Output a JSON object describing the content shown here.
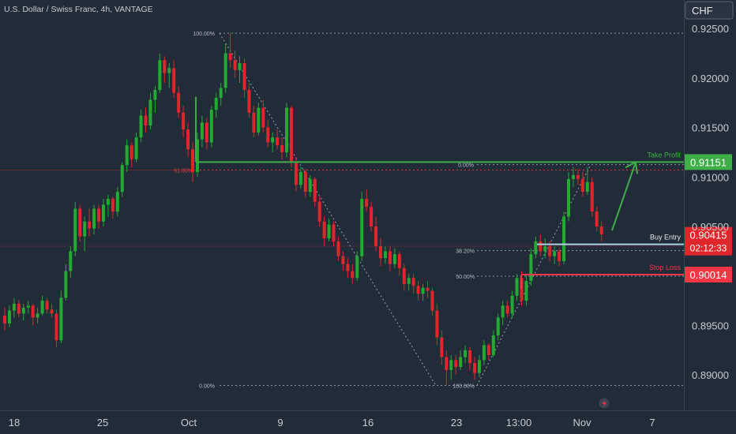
{
  "header": {
    "symbol_title": "U.S. Dollar / Swiss Franc, 4h, VANTAGE",
    "currency": "CHF"
  },
  "colors": {
    "background": "#222b38",
    "up": "#22ab30",
    "down": "#e0262b",
    "take_profit": "#3fae49",
    "stop_loss": "#f23645",
    "entry": "#b2cfe6",
    "text": "#c7cbd2"
  },
  "icons": {
    "logo": "lightning-bolt-icon"
  },
  "chart_data": {
    "type": "candlestick",
    "title": "U.S. Dollar / Swiss Franc, 4h, VANTAGE",
    "y_range": [
      0.88722,
      0.92709
    ],
    "y_ticks": [
      "0.92500",
      "0.92000",
      "0.91500",
      "0.91000",
      "0.90500",
      "0.89500",
      "0.89000"
    ],
    "x_ticks": [
      "18",
      "25",
      "Oct",
      "9",
      "16",
      "23",
      "13:00",
      "Nov",
      "7"
    ],
    "grid": false,
    "fib_levels": [
      {
        "label": "100.00%",
        "price": 0.92453
      },
      {
        "label": "61.80%",
        "price": 0.91069
      },
      {
        "label": "0.00%",
        "price": 0.91125
      },
      {
        "label": "38.20%",
        "price": 0.90256
      },
      {
        "label": "50.00%",
        "price": 0.89998
      },
      {
        "label": "0.00%",
        "price": 0.88893
      },
      {
        "label": "100.00%",
        "price": 0.88893
      }
    ],
    "levels": {
      "take_profit": {
        "label": "Take Profit",
        "price": "0.91151",
        "value": 0.91151
      },
      "buy_entry": {
        "label": "Buy Entry",
        "price": "0.90415",
        "value": 0.90415,
        "countdown": "02:12:33"
      },
      "stop_loss": {
        "label": "Stop Loss",
        "price": "0.90014",
        "value": 0.90014
      }
    },
    "candles": [
      [
        0.896,
        0.8968,
        0.8945,
        0.8952
      ],
      [
        0.8952,
        0.897,
        0.8948,
        0.8965
      ],
      [
        0.8965,
        0.8978,
        0.8958,
        0.8972
      ],
      [
        0.8972,
        0.8976,
        0.8958,
        0.8962
      ],
      [
        0.8962,
        0.8972,
        0.8955,
        0.8968
      ],
      [
        0.8968,
        0.8975,
        0.8962,
        0.897
      ],
      [
        0.897,
        0.8972,
        0.895,
        0.8958
      ],
      [
        0.8958,
        0.8968,
        0.8952,
        0.8962
      ],
      [
        0.8962,
        0.898,
        0.896,
        0.8975
      ],
      [
        0.8975,
        0.8978,
        0.8962,
        0.8966
      ],
      [
        0.8966,
        0.8972,
        0.8958,
        0.8962
      ],
      [
        0.8962,
        0.8966,
        0.8928,
        0.8935
      ],
      [
        0.8935,
        0.8985,
        0.8932,
        0.8978
      ],
      [
        0.8978,
        0.9012,
        0.8975,
        0.9005
      ],
      [
        0.9005,
        0.903,
        0.8998,
        0.9025
      ],
      [
        0.9025,
        0.9075,
        0.902,
        0.9068
      ],
      [
        0.9068,
        0.9072,
        0.9035,
        0.904
      ],
      [
        0.904,
        0.906,
        0.9025,
        0.9055
      ],
      [
        0.9055,
        0.9068,
        0.904,
        0.9048
      ],
      [
        0.9048,
        0.9072,
        0.9042,
        0.9068
      ],
      [
        0.9068,
        0.9072,
        0.9048,
        0.9055
      ],
      [
        0.9055,
        0.9078,
        0.905,
        0.9072
      ],
      [
        0.9072,
        0.9082,
        0.906,
        0.9078
      ],
      [
        0.9078,
        0.908,
        0.9058,
        0.9065
      ],
      [
        0.9065,
        0.909,
        0.906,
        0.9085
      ],
      [
        0.9085,
        0.9115,
        0.908,
        0.9112
      ],
      [
        0.9112,
        0.9138,
        0.9105,
        0.9132
      ],
      [
        0.9132,
        0.9135,
        0.911,
        0.9118
      ],
      [
        0.9118,
        0.9145,
        0.9115,
        0.914
      ],
      [
        0.914,
        0.9168,
        0.9135,
        0.9162
      ],
      [
        0.9162,
        0.917,
        0.9145,
        0.9152
      ],
      [
        0.9152,
        0.9185,
        0.9148,
        0.9178
      ],
      [
        0.9178,
        0.9192,
        0.9165,
        0.9188
      ],
      [
        0.9188,
        0.9225,
        0.9185,
        0.9218
      ],
      [
        0.9218,
        0.9222,
        0.9195,
        0.9205
      ],
      [
        0.9205,
        0.9215,
        0.919,
        0.921
      ],
      [
        0.921,
        0.9218,
        0.918,
        0.9185
      ],
      [
        0.9185,
        0.9192,
        0.916,
        0.9165
      ],
      [
        0.9165,
        0.9172,
        0.914,
        0.9148
      ],
      [
        0.9148,
        0.9155,
        0.912,
        0.9128
      ],
      [
        0.9128,
        0.9135,
        0.9095,
        0.9105
      ],
      [
        0.9105,
        0.9145,
        0.91,
        0.9138
      ],
      [
        0.9138,
        0.9162,
        0.913,
        0.9155
      ],
      [
        0.9155,
        0.916,
        0.9128,
        0.9135
      ],
      [
        0.9135,
        0.9172,
        0.913,
        0.9168
      ],
      [
        0.9168,
        0.9185,
        0.916,
        0.918
      ],
      [
        0.918,
        0.9195,
        0.9172,
        0.919
      ],
      [
        0.919,
        0.9235,
        0.9185,
        0.9225
      ],
      [
        0.9225,
        0.9246,
        0.921,
        0.9218
      ],
      [
        0.9218,
        0.9228,
        0.92,
        0.9208
      ],
      [
        0.9208,
        0.9222,
        0.9195,
        0.9215
      ],
      [
        0.9215,
        0.922,
        0.918,
        0.9188
      ],
      [
        0.9188,
        0.9195,
        0.916,
        0.9165
      ],
      [
        0.9165,
        0.9172,
        0.914,
        0.9145
      ],
      [
        0.9145,
        0.9175,
        0.9142,
        0.917
      ],
      [
        0.917,
        0.9178,
        0.9145,
        0.915
      ],
      [
        0.915,
        0.9158,
        0.913,
        0.9135
      ],
      [
        0.9135,
        0.9145,
        0.9125,
        0.914
      ],
      [
        0.914,
        0.9148,
        0.9128,
        0.9132
      ],
      [
        0.9132,
        0.914,
        0.9118,
        0.9125
      ],
      [
        0.9125,
        0.9175,
        0.912,
        0.917
      ],
      [
        0.917,
        0.9172,
        0.911,
        0.9115
      ],
      [
        0.9115,
        0.912,
        0.9085,
        0.9092
      ],
      [
        0.9092,
        0.911,
        0.9088,
        0.9105
      ],
      [
        0.9105,
        0.9108,
        0.908,
        0.9085
      ],
      [
        0.9085,
        0.9102,
        0.908,
        0.9098
      ],
      [
        0.9098,
        0.91,
        0.907,
        0.9075
      ],
      [
        0.9075,
        0.908,
        0.905,
        0.9055
      ],
      [
        0.9055,
        0.906,
        0.903,
        0.9038
      ],
      [
        0.9038,
        0.9058,
        0.9035,
        0.9052
      ],
      [
        0.9052,
        0.9055,
        0.903,
        0.9035
      ],
      [
        0.9035,
        0.904,
        0.9015,
        0.902
      ],
      [
        0.902,
        0.9025,
        0.9005,
        0.9012
      ],
      [
        0.9012,
        0.9018,
        0.8998,
        0.9005
      ],
      [
        0.9005,
        0.9012,
        0.8992,
        0.8998
      ],
      [
        0.8998,
        0.9025,
        0.8995,
        0.902
      ],
      [
        0.902,
        0.9085,
        0.9015,
        0.9078
      ],
      [
        0.9078,
        0.9088,
        0.9065,
        0.907
      ],
      [
        0.907,
        0.9075,
        0.9045,
        0.905
      ],
      [
        0.905,
        0.906,
        0.9025,
        0.903
      ],
      [
        0.903,
        0.9038,
        0.901,
        0.9018
      ],
      [
        0.9018,
        0.903,
        0.9012,
        0.9025
      ],
      [
        0.9025,
        0.903,
        0.9005,
        0.9012
      ],
      [
        0.9012,
        0.9028,
        0.9008,
        0.9022
      ],
      [
        0.9022,
        0.9025,
        0.9,
        0.9008
      ],
      [
        0.9008,
        0.9012,
        0.8985,
        0.8992
      ],
      [
        0.8992,
        0.9002,
        0.8985,
        0.8998
      ],
      [
        0.8998,
        0.9002,
        0.8982,
        0.899
      ],
      [
        0.899,
        0.8995,
        0.8975,
        0.8982
      ],
      [
        0.8982,
        0.8992,
        0.8975,
        0.8988
      ],
      [
        0.8988,
        0.8995,
        0.8978,
        0.8985
      ],
      [
        0.8985,
        0.8988,
        0.896,
        0.8965
      ],
      [
        0.8965,
        0.8972,
        0.893,
        0.8938
      ],
      [
        0.8938,
        0.8945,
        0.891,
        0.8918
      ],
      [
        0.8918,
        0.8925,
        0.889,
        0.8905
      ],
      [
        0.8905,
        0.892,
        0.8895,
        0.8915
      ],
      [
        0.8915,
        0.892,
        0.89,
        0.8908
      ],
      [
        0.8908,
        0.8925,
        0.8905,
        0.8918
      ],
      [
        0.8918,
        0.893,
        0.8912,
        0.8925
      ],
      [
        0.8925,
        0.8928,
        0.8905,
        0.8912
      ],
      [
        0.8912,
        0.8918,
        0.8895,
        0.8902
      ],
      [
        0.8902,
        0.892,
        0.8898,
        0.8915
      ],
      [
        0.8915,
        0.8935,
        0.891,
        0.893
      ],
      [
        0.893,
        0.8932,
        0.8915,
        0.892
      ],
      [
        0.892,
        0.8945,
        0.8918,
        0.894
      ],
      [
        0.894,
        0.8962,
        0.8935,
        0.8958
      ],
      [
        0.8958,
        0.8975,
        0.895,
        0.897
      ],
      [
        0.897,
        0.8975,
        0.8958,
        0.8962
      ],
      [
        0.8962,
        0.8985,
        0.8958,
        0.898
      ],
      [
        0.898,
        0.9002,
        0.8975,
        0.8998
      ],
      [
        0.8998,
        0.9005,
        0.897,
        0.8975
      ],
      [
        0.8975,
        0.9002,
        0.897,
        0.8995
      ],
      [
        0.8995,
        0.9028,
        0.899,
        0.9022
      ],
      [
        0.9022,
        0.904,
        0.9018,
        0.9035
      ],
      [
        0.9035,
        0.9042,
        0.902,
        0.9025
      ],
      [
        0.9025,
        0.9038,
        0.9018,
        0.903
      ],
      [
        0.903,
        0.9035,
        0.9015,
        0.902
      ],
      [
        0.902,
        0.903,
        0.9012,
        0.9025
      ],
      [
        0.9025,
        0.9028,
        0.901,
        0.9015
      ],
      [
        0.9015,
        0.9065,
        0.9012,
        0.906
      ],
      [
        0.906,
        0.9105,
        0.9055,
        0.9098
      ],
      [
        0.9098,
        0.911,
        0.909,
        0.9102
      ],
      [
        0.9102,
        0.9108,
        0.9092,
        0.9098
      ],
      [
        0.9098,
        0.9105,
        0.908,
        0.9085
      ],
      [
        0.9085,
        0.911,
        0.9082,
        0.9095
      ],
      [
        0.9095,
        0.91,
        0.906,
        0.9065
      ],
      [
        0.9065,
        0.907,
        0.9045,
        0.905
      ],
      [
        0.905,
        0.9055,
        0.9035,
        0.9042
      ]
    ]
  }
}
